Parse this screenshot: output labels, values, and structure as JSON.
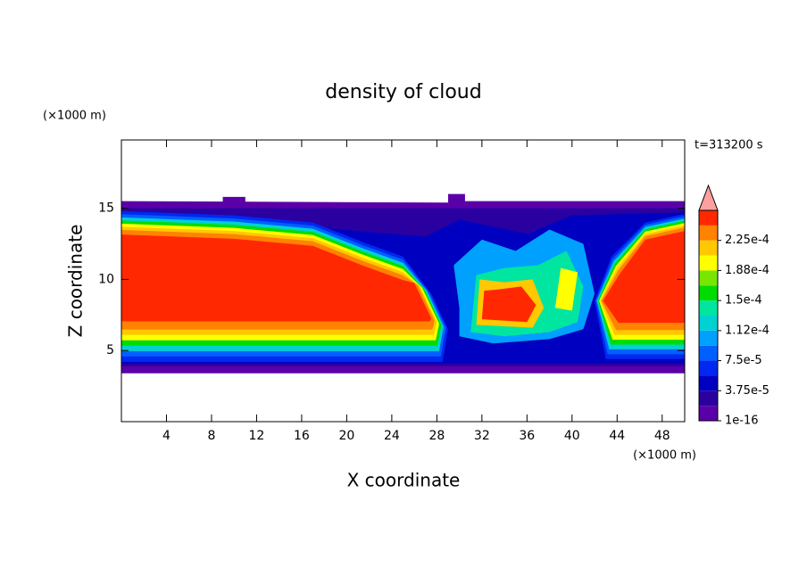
{
  "chart_data": {
    "type": "contour",
    "title": "density of cloud",
    "time_label": "t=313200 s",
    "x_label": "X coordinate",
    "y_label": "Z coordinate",
    "x_unit": "(×1000 m)",
    "y_unit": "(×1000 m)",
    "xlim": [
      0,
      50
    ],
    "ylim": [
      0,
      19.8
    ],
    "xticks": [
      4,
      8,
      12,
      16,
      20,
      24,
      28,
      32,
      36,
      40,
      44,
      48
    ],
    "yticks": [
      5,
      10,
      15
    ],
    "colorbar": {
      "levels": [
        1e-16,
        1.875e-05,
        3.75e-05,
        5.625e-05,
        7.5e-05,
        9.375e-05,
        0.0001125,
        0.00013125,
        0.00015,
        0.00016875,
        0.0001875,
        0.00020625,
        0.000225,
        0.00024375,
        0.0002625
      ],
      "colors": [
        "#5a00a8",
        "#2a00a0",
        "#0000c0",
        "#0028f0",
        "#0060ff",
        "#00a0ff",
        "#00d2d2",
        "#00e6a0",
        "#00dc00",
        "#78e600",
        "#ffff00",
        "#ffc800",
        "#ff8200",
        "#ff2800"
      ],
      "extend_color": "#ffa0a0",
      "ticks": [
        {
          "value": 1e-16,
          "label": "1e-16"
        },
        {
          "value": 3.75e-05,
          "label": "3.75e-5"
        },
        {
          "value": 7.5e-05,
          "label": "7.5e-5"
        },
        {
          "value": 0.0001125,
          "label": "1.12e-4"
        },
        {
          "value": 0.00015,
          "label": "1.5e-4"
        },
        {
          "value": 0.0001875,
          "label": "1.88e-4"
        },
        {
          "value": 0.000225,
          "label": "2.25e-4"
        }
      ]
    }
  }
}
